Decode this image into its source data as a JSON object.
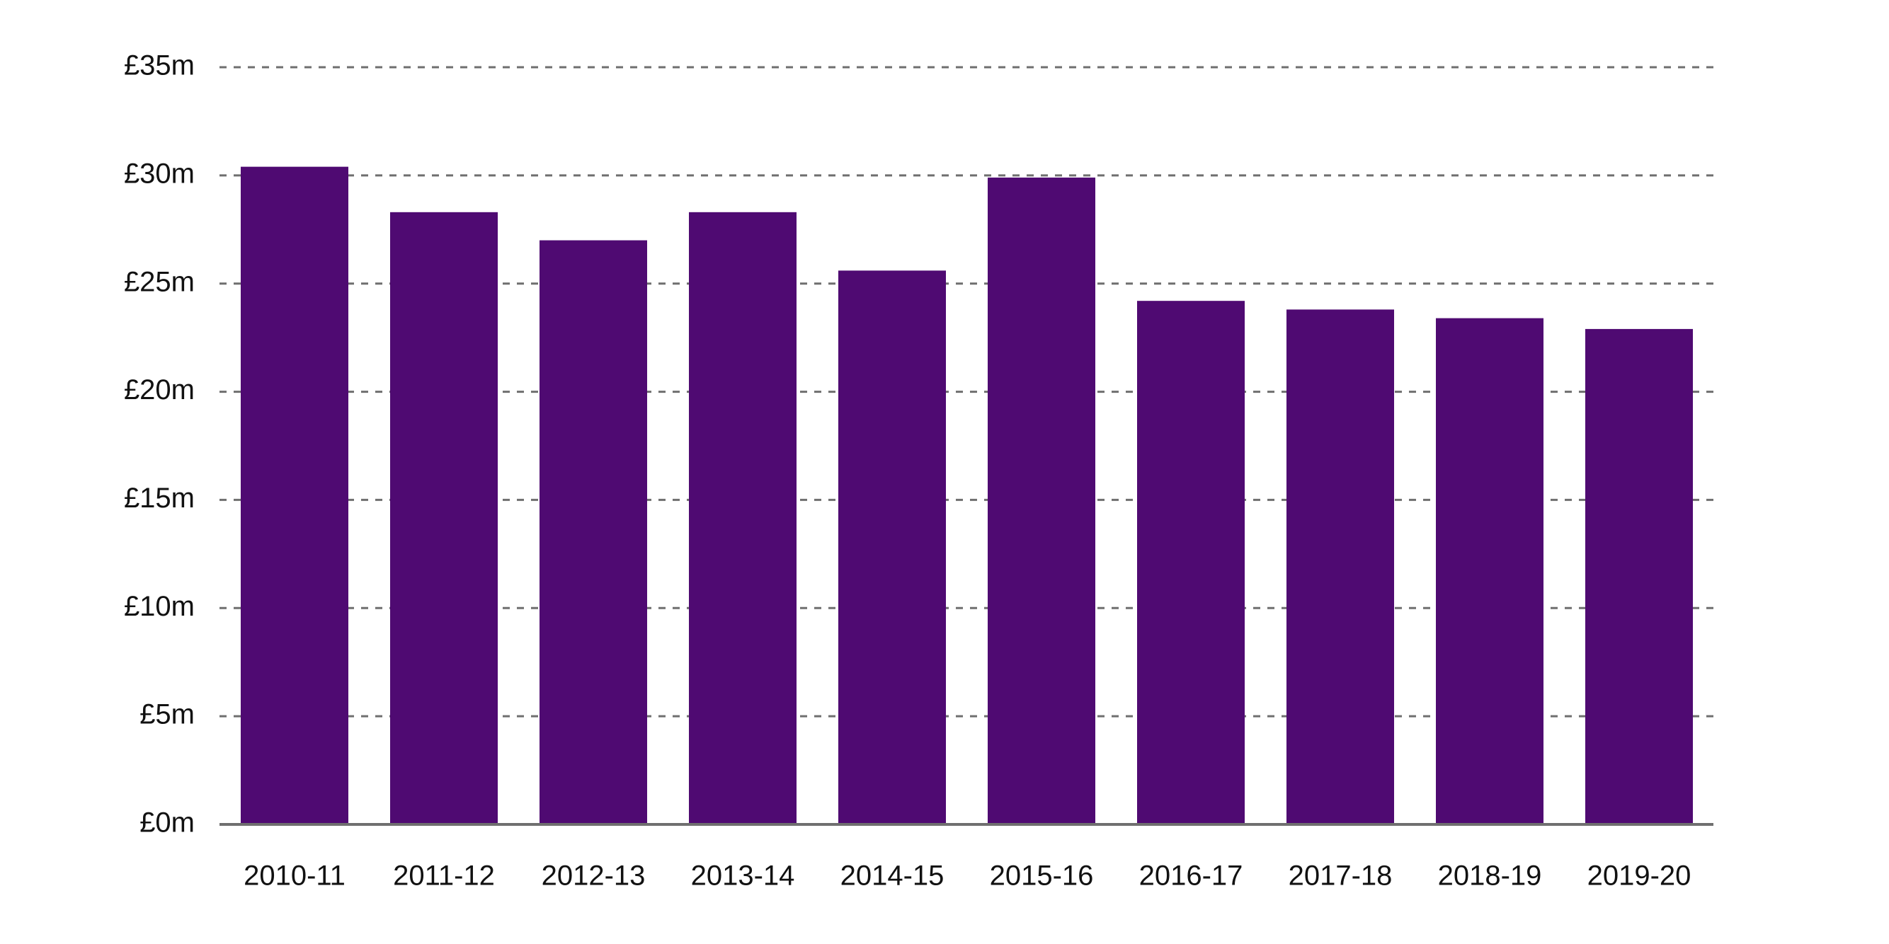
{
  "chart_data": {
    "type": "bar",
    "title": "",
    "xlabel": "",
    "ylabel": "",
    "categories": [
      "2010-11",
      "2011-12",
      "2012-13",
      "2013-14",
      "2014-15",
      "2015-16",
      "2016-17",
      "2017-18",
      "2018-19",
      "2019-20"
    ],
    "values": [
      30.4,
      28.3,
      27.0,
      28.3,
      25.6,
      29.9,
      24.2,
      23.8,
      23.4,
      22.9
    ],
    "ylim": [
      0,
      35
    ],
    "yticks": [
      0,
      5,
      10,
      15,
      20,
      25,
      30,
      35
    ],
    "ytick_labels": [
      "£0m",
      "£5m",
      "£10m",
      "£15m",
      "£20m",
      "£25m",
      "£30m",
      "£35m"
    ],
    "grid": true,
    "legend": "none",
    "bar_color": "#4f0a72",
    "grid_color": "#6f6f6f"
  }
}
